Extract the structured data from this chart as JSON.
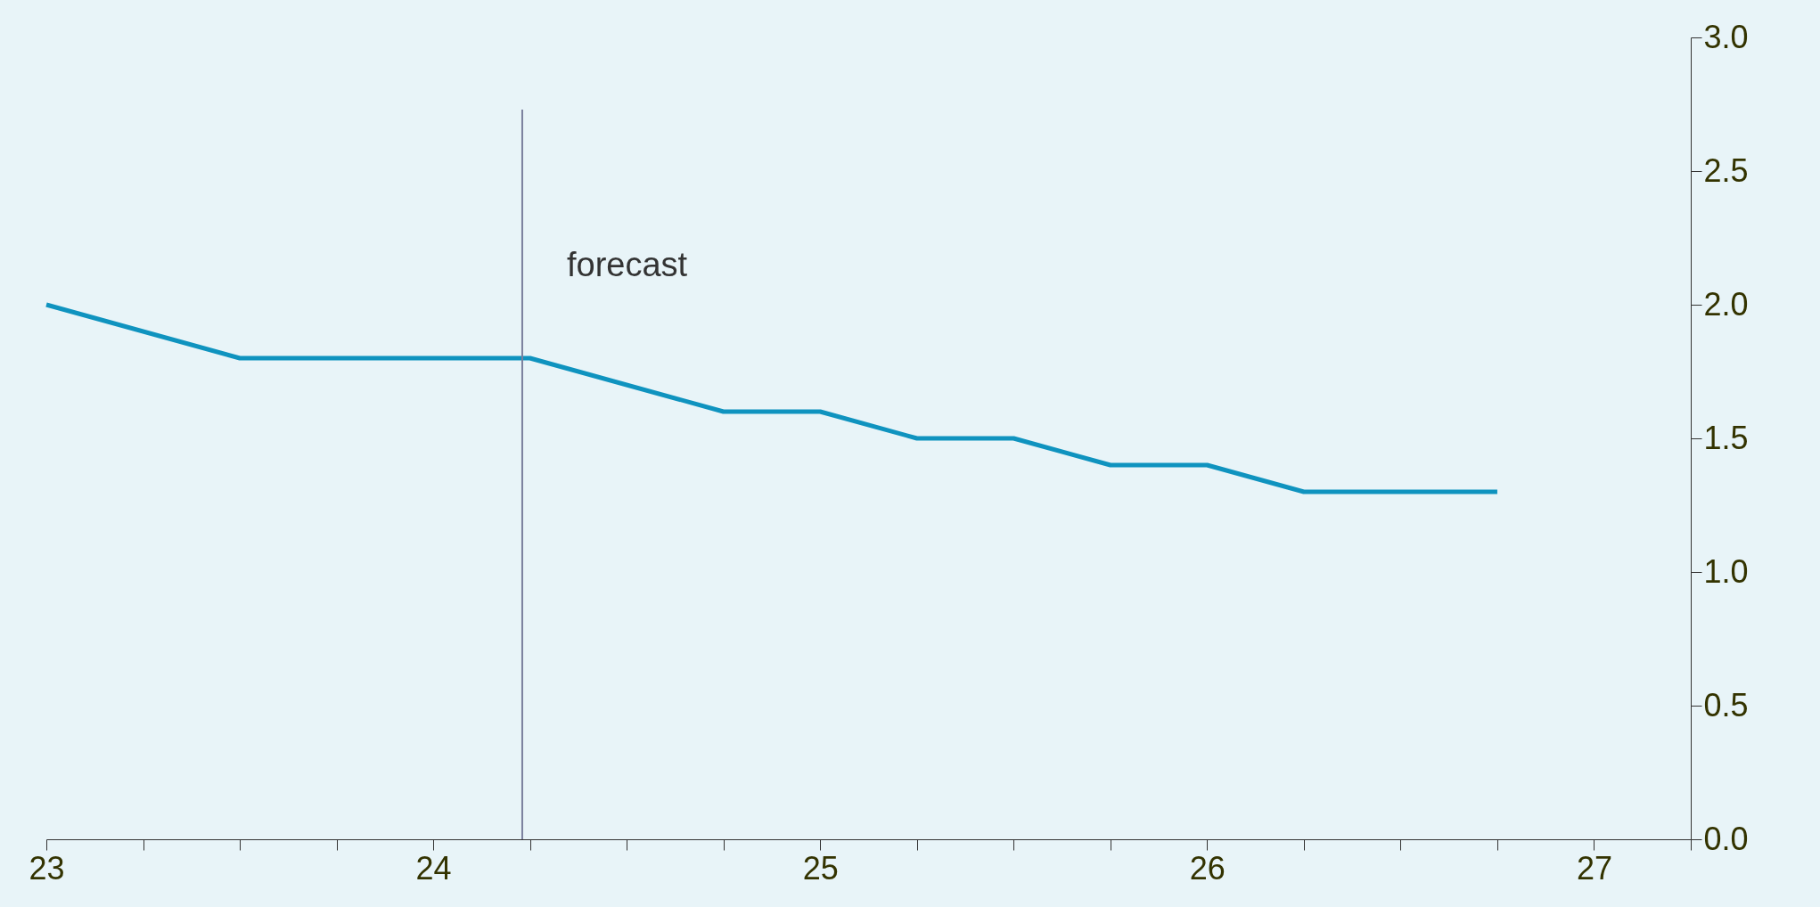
{
  "chart_data": {
    "type": "line",
    "x": [
      23,
      23.5,
      24.25,
      24.75,
      25,
      25.25,
      25.5,
      25.75,
      26,
      26.25,
      26.75
    ],
    "series": [
      {
        "color": "#0f93bf",
        "values": [
          2.0,
          1.8,
          1.8,
          1.6,
          1.6,
          1.5,
          1.5,
          1.4,
          1.4,
          1.3,
          1.3
        ],
        "axis": "y2"
      }
    ],
    "xlim": [
      23,
      27.25
    ],
    "xticks": [
      23,
      {
        "value": 23.25,
        "label": null
      },
      {
        "value": 23.5,
        "label": null
      },
      {
        "value": 23.75,
        "label": null
      },
      24,
      {
        "value": 24.25,
        "label": null
      },
      {
        "value": 24.5,
        "label": null
      },
      {
        "value": 24.75,
        "label": null
      },
      25,
      {
        "value": 25.25,
        "label": null
      },
      {
        "value": 25.5,
        "label": null
      },
      {
        "value": 25.75,
        "label": null
      },
      26,
      {
        "value": 26.25,
        "label": null
      },
      {
        "value": 26.5,
        "label": null
      },
      {
        "value": 26.75,
        "label": null
      },
      27,
      {
        "value": 27.25,
        "label": null
      }
    ],
    "y2lim": [
      0,
      3
    ],
    "y2ticks": [
      {
        "value": 0,
        "label": "0.0"
      },
      {
        "value": 0.5,
        "label": "0.5"
      },
      {
        "value": 1,
        "label": "1.0"
      },
      {
        "value": 1.5,
        "label": "1.5"
      },
      {
        "value": 2,
        "label": "2.0"
      },
      {
        "value": 2.5,
        "label": "2.5"
      },
      {
        "value": 3,
        "label": "3.0"
      }
    ],
    "ref_lines": [
      {
        "axis": "x",
        "value": 24.23,
        "label": "forecast",
        "color": "#7a7f9e"
      }
    ],
    "grid": false,
    "marker": "none",
    "line_style": "solid"
  }
}
